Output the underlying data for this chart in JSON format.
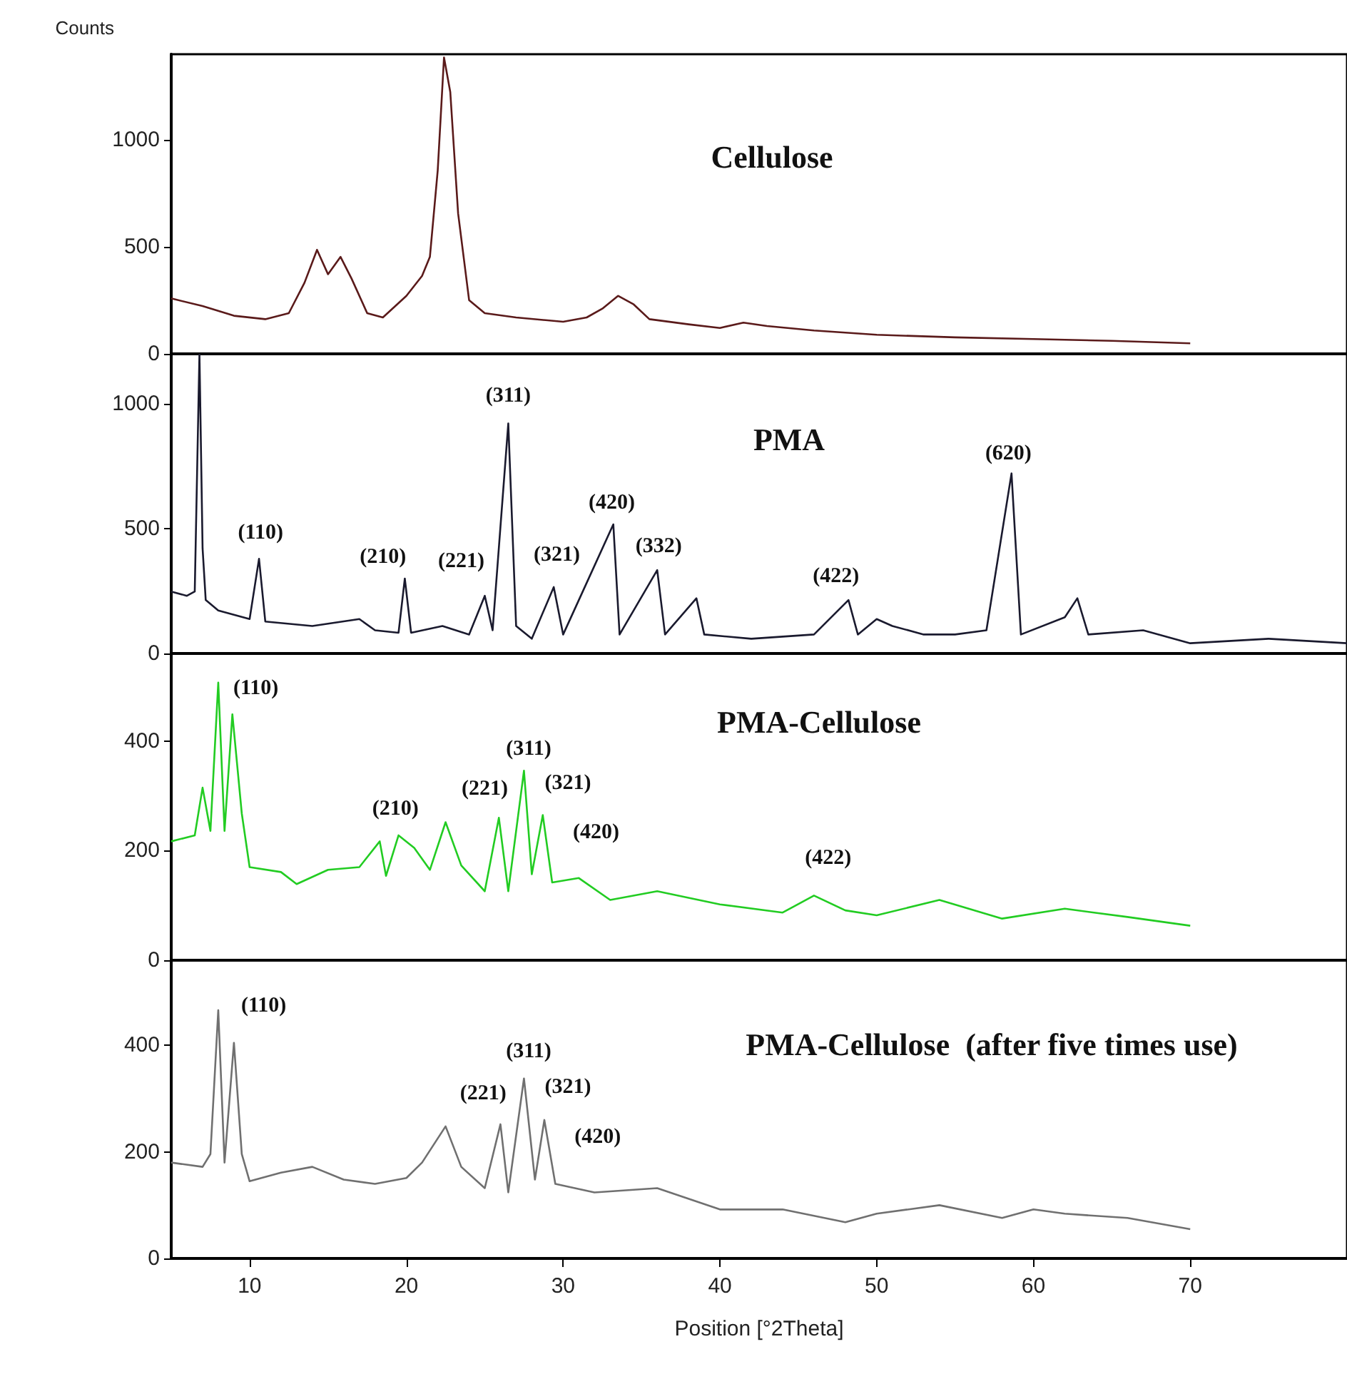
{
  "chart_data": [
    {
      "type": "line",
      "title": "Cellulose",
      "ylabel": "Counts",
      "xlim": [
        5,
        80
      ],
      "xticks": [
        10,
        20,
        30,
        40,
        50,
        60,
        70
      ],
      "ylim": [
        0,
        1400
      ],
      "yticks": [
        0,
        500,
        1000
      ],
      "tick_labels": "y",
      "marker": "none",
      "line_style": "solid",
      "x": [
        5,
        7,
        9,
        11,
        12.5,
        13.5,
        14.3,
        15,
        15.8,
        16.5,
        17.5,
        18.5,
        20,
        21,
        21.5,
        22,
        22.4,
        22.8,
        23.3,
        24,
        25,
        27,
        30,
        31.5,
        32.5,
        33.5,
        34.5,
        35.5,
        38,
        40,
        41.5,
        43,
        46,
        50,
        55,
        60,
        65,
        70
      ],
      "series": [
        {
          "color": "#5a1a1a",
          "values": [
            259,
            223,
            178,
            162,
            190,
            332,
            486,
            372,
            453,
            352,
            190,
            170,
            271,
            364,
            453,
            858,
            1385,
            1223,
            656,
            251,
            190,
            170,
            150,
            170,
            211,
            271,
            231,
            162,
            138,
            121,
            146,
            130,
            109,
            89,
            77,
            69,
            61,
            49
          ]
        }
      ]
    },
    {
      "type": "line",
      "title": "PMA",
      "xlim": [
        5,
        80
      ],
      "xticks": [
        10,
        20,
        30,
        40,
        50,
        60,
        70
      ],
      "ylim": [
        0,
        1200
      ],
      "yticks": [
        0,
        500,
        1000
      ],
      "tick_labels": "y",
      "marker": "none",
      "line_style": "solid",
      "x": [
        5,
        6,
        6.5,
        6.8,
        7,
        7.2,
        8,
        10,
        10.6,
        11,
        14,
        17,
        18,
        19.5,
        19.9,
        20.3,
        22.3,
        24,
        25,
        25.5,
        26.5,
        27,
        28,
        29.4,
        30,
        33.2,
        33.6,
        36,
        36.5,
        38.5,
        39,
        42,
        46,
        48.2,
        48.8,
        50,
        51,
        53,
        55,
        57,
        58.6,
        59.2,
        62,
        62.8,
        63.5,
        67,
        70,
        75,
        80
      ],
      "series": [
        {
          "color": "#1a1a2e",
          "values": [
            248,
            231,
            248,
            1200,
            421,
            214,
            172,
            138,
            379,
            128,
            110,
            138,
            93,
            83,
            300,
            83,
            110,
            76,
            231,
            93,
            921,
            110,
            59,
            266,
            76,
            517,
            76,
            334,
            76,
            221,
            76,
            59,
            76,
            214,
            76,
            138,
            110,
            76,
            76,
            93,
            721,
            76,
            145,
            221,
            76,
            93,
            41,
            59,
            41
          ]
        }
      ],
      "annotations": [
        "(110)",
        "(210)",
        "(221)",
        "(311)",
        "(321)",
        "(420)",
        "(332)",
        "(422)",
        "(620)"
      ]
    },
    {
      "type": "line",
      "title": "PMA-Cellulose",
      "xlim": [
        5,
        80
      ],
      "xticks": [
        10,
        20,
        30,
        40,
        50,
        60,
        70
      ],
      "ylim": [
        0,
        560
      ],
      "yticks": [
        0,
        200,
        400
      ],
      "tick_labels": "y",
      "marker": "none",
      "line_style": "solid",
      "x": [
        5,
        6.5,
        7,
        7.5,
        8,
        8.4,
        8.9,
        9.5,
        10,
        12,
        13,
        15,
        17,
        18.3,
        18.7,
        19.5,
        20.5,
        21.5,
        22.5,
        23.5,
        25,
        25.9,
        26.5,
        27.5,
        28,
        28.7,
        29.3,
        31,
        33,
        36,
        40,
        44,
        46,
        48,
        50,
        54,
        58,
        62,
        66,
        70
      ],
      "series": [
        {
          "color": "#22cc22",
          "values": [
            217,
            228,
            315,
            236,
            507,
            236,
            449,
            268,
            170,
            161,
            139,
            165,
            170,
            217,
            154,
            228,
            205,
            165,
            252,
            173,
            126,
            260,
            126,
            346,
            157,
            265,
            142,
            150,
            110,
            126,
            102,
            87,
            118,
            91,
            82,
            110,
            76,
            94,
            79,
            63
          ]
        }
      ],
      "annotations": [
        "(110)",
        "(210)",
        "(221)",
        "(311)",
        "(321)",
        "(420)",
        "(422)"
      ]
    },
    {
      "type": "line",
      "title": "PMA-Cellulose  (after five times use)",
      "xlabel": "Position [°2Theta]",
      "xlim": [
        5,
        80
      ],
      "xticks": [
        10,
        20,
        30,
        40,
        50,
        60,
        70
      ],
      "ylim": [
        0,
        560
      ],
      "yticks": [
        0,
        200,
        400
      ],
      "marker": "none",
      "line_style": "solid",
      "x": [
        5,
        7,
        7.5,
        8,
        8.4,
        9,
        9.5,
        10,
        12,
        14,
        16,
        18,
        20,
        21,
        22.5,
        23.5,
        25,
        26,
        26.5,
        27.5,
        28.2,
        28.8,
        29.5,
        32,
        36,
        40,
        44,
        48,
        50,
        54,
        58,
        60,
        62,
        66,
        70
      ],
      "series": [
        {
          "color": "#707070",
          "values": [
            180,
            172,
            196,
            466,
            180,
            405,
            196,
            145,
            161,
            172,
            148,
            140,
            151,
            180,
            248,
            172,
            132,
            252,
            124,
            338,
            148,
            260,
            140,
            124,
            132,
            92,
            92,
            68,
            84,
            100,
            76,
            92,
            84,
            76,
            55
          ]
        }
      ],
      "annotations": [
        "(110)",
        "(221)",
        "(311)",
        "(321)",
        "(420)"
      ]
    }
  ]
}
